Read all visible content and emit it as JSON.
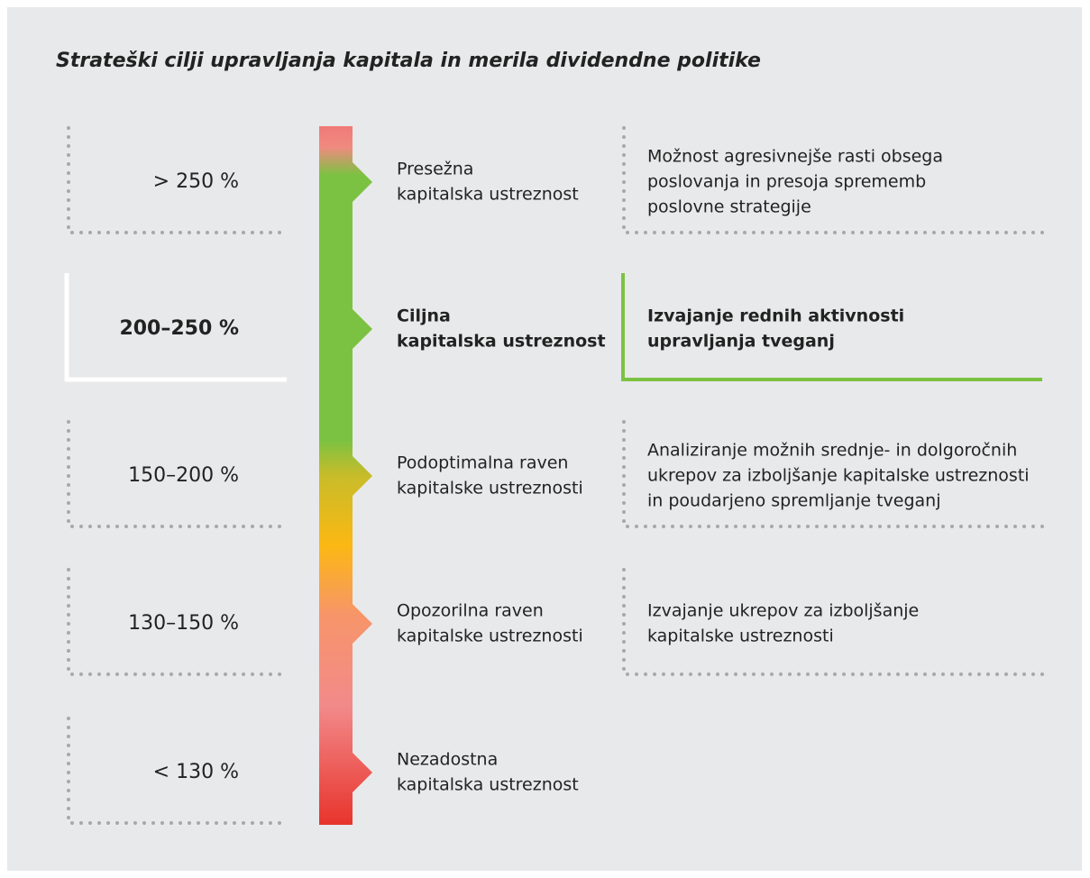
{
  "title": "Strateški cilji upravljanja kapitala in merila dividendne politike",
  "rows": [
    {
      "range": "> 250 %",
      "level": [
        "Presežna",
        "kapitalska ustreznost"
      ],
      "action": [
        "Možnost agresivnejše rasti obsega",
        "poslovanja in presoja sprememb",
        "poslovne strategije"
      ]
    },
    {
      "range": "200–250 %",
      "level": [
        "Ciljna",
        "kapitalska ustreznost"
      ],
      "action": [
        "Izvajanje rednih aktivnosti",
        "upravljanja tveganj"
      ],
      "highlight": true
    },
    {
      "range": "150–200 %",
      "level": [
        "Podoptimalna raven",
        "kapitalske ustreznosti"
      ],
      "action": [
        "Analiziranje možnih srednje- in dolgoročnih",
        "ukrepov za izboljšanje kapitalske ustreznosti",
        "in poudarjeno spremljanje tveganj"
      ]
    },
    {
      "range": "130–150 %",
      "level": [
        "Opozorilna raven",
        "kapitalske ustreznosti"
      ],
      "action": [
        "Izvajanje ukrepov za izboljšanje",
        "kapitalske ustreznosti"
      ]
    },
    {
      "range": "< 130 %",
      "level": [
        "Nezadostna",
        "kapitalska ustreznost"
      ]
    }
  ]
}
